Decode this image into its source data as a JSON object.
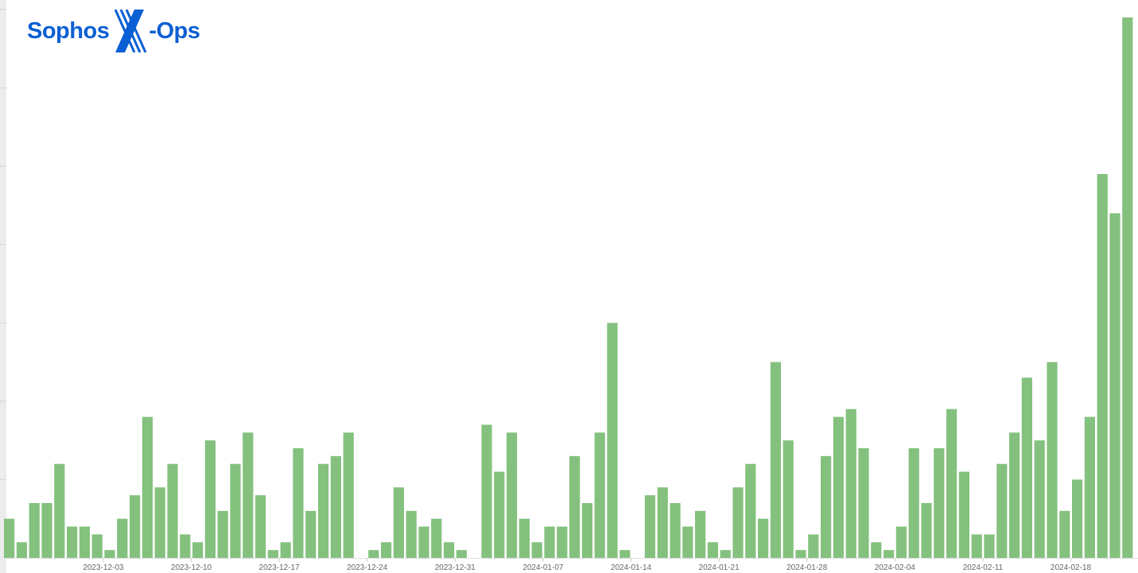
{
  "logo": {
    "text_left": "Sophos",
    "text_right": "-Ops",
    "mark": "X",
    "color": "#0b5fd4"
  },
  "chart_data": {
    "type": "bar",
    "title": "",
    "xlabel": "",
    "ylabel": "",
    "bar_color": "#84c17e",
    "grid": false,
    "ylim": [
      0,
      70
    ],
    "start_date": "2023-11-25",
    "categories": [
      "2023-11-25",
      "2023-11-26",
      "2023-11-27",
      "2023-11-28",
      "2023-11-29",
      "2023-11-30",
      "2023-12-01",
      "2023-12-02",
      "2023-12-03",
      "2023-12-04",
      "2023-12-05",
      "2023-12-06",
      "2023-12-07",
      "2023-12-08",
      "2023-12-09",
      "2023-12-10",
      "2023-12-11",
      "2023-12-12",
      "2023-12-13",
      "2023-12-14",
      "2023-12-15",
      "2023-12-16",
      "2023-12-17",
      "2023-12-18",
      "2023-12-19",
      "2023-12-20",
      "2023-12-21",
      "2023-12-22",
      "2023-12-23",
      "2023-12-24",
      "2023-12-25",
      "2023-12-26",
      "2023-12-27",
      "2023-12-28",
      "2023-12-29",
      "2023-12-30",
      "2023-12-31",
      "2024-01-01",
      "2024-01-02",
      "2024-01-03",
      "2024-01-04",
      "2024-01-05",
      "2024-01-06",
      "2024-01-07",
      "2024-01-08",
      "2024-01-09",
      "2024-01-10",
      "2024-01-11",
      "2024-01-12",
      "2024-01-13",
      "2024-01-14",
      "2024-01-15",
      "2024-01-16",
      "2024-01-17",
      "2024-01-18",
      "2024-01-19",
      "2024-01-20",
      "2024-01-21",
      "2024-01-22",
      "2024-01-23",
      "2024-01-24",
      "2024-01-25",
      "2024-01-26",
      "2024-01-27",
      "2024-01-28",
      "2024-01-29",
      "2024-01-30",
      "2024-01-31",
      "2024-02-01",
      "2024-02-02",
      "2024-02-03",
      "2024-02-04",
      "2024-02-05",
      "2024-02-06",
      "2024-02-07",
      "2024-02-08",
      "2024-02-09",
      "2024-02-10",
      "2024-02-11",
      "2024-02-12",
      "2024-02-13",
      "2024-02-14",
      "2024-02-15",
      "2024-02-16",
      "2024-02-17",
      "2024-02-18",
      "2024-02-19",
      "2024-02-20",
      "2024-02-21",
      "2024-02-22"
    ],
    "values": [
      5,
      2,
      7,
      7,
      12,
      4,
      4,
      3,
      1,
      5,
      8,
      18,
      9,
      12,
      3,
      2,
      15,
      6,
      12,
      16,
      8,
      1,
      2,
      14,
      6,
      12,
      13,
      16,
      0,
      1,
      2,
      9,
      6,
      4,
      5,
      2,
      1,
      0,
      17,
      11,
      16,
      5,
      2,
      4,
      4,
      13,
      7,
      16,
      30,
      1,
      0,
      8,
      9,
      7,
      4,
      6,
      2,
      1,
      9,
      12,
      5,
      25,
      15,
      1,
      3,
      13,
      18,
      19,
      14,
      2,
      1,
      4,
      14,
      7,
      14,
      19,
      11,
      3,
      3,
      12,
      16,
      23,
      15,
      25,
      6,
      10,
      18,
      49,
      44,
      69
    ],
    "x_tick_labels": [
      "2023-12-03",
      "2023-12-10",
      "2023-12-17",
      "2023-12-24",
      "2023-12-31",
      "2024-01-07",
      "2024-01-14",
      "2024-01-21",
      "2024-01-28",
      "2024-02-04",
      "2024-02-11",
      "2024-02-18"
    ]
  }
}
